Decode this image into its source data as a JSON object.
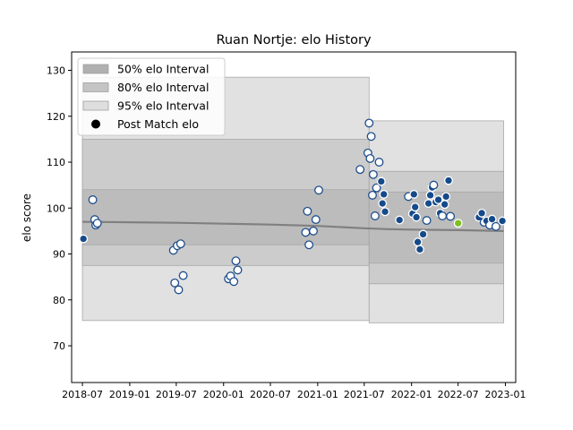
{
  "chart_data": {
    "type": "scatter",
    "title": "Ruan Nortje: elo History",
    "xlabel": "",
    "ylabel": "elo score",
    "xlim": [
      "2018-05-20",
      "2023-02-10"
    ],
    "ylim": [
      62,
      134
    ],
    "x_ticks": [
      "2018-07",
      "2019-01",
      "2019-07",
      "2020-01",
      "2020-07",
      "2021-01",
      "2021-07",
      "2022-01",
      "2022-07",
      "2023-01"
    ],
    "y_ticks": [
      70,
      80,
      90,
      100,
      110,
      120,
      130
    ],
    "grid": false,
    "legend": {
      "placement": "top-left",
      "entries": [
        {
          "label": "50% elo Interval",
          "kind": "patch",
          "color": "#b0b0b0"
        },
        {
          "label": "80% elo Interval",
          "kind": "patch",
          "color": "#c4c4c4"
        },
        {
          "label": "95% elo Interval",
          "kind": "patch",
          "color": "#dedede"
        },
        {
          "label": "Post Match elo",
          "kind": "marker",
          "color": "#000000"
        }
      ]
    },
    "colors": {
      "band_50": "#b8b8b8",
      "band_80": "#c8c8c8",
      "band_95": "#dcdcdc",
      "band_edge": "#a8a8a8",
      "mean_line": "#808080",
      "point_white_edge": "#1f4e8c",
      "point_filled": "#154a8a",
      "point_highlight": "#7fbf1f"
    },
    "intervals": {
      "segment_1": {
        "from": "2018-07-01",
        "to": "2021-07-20",
        "b95": [
          75.5,
          128.5
        ],
        "b80": [
          87.5,
          115
        ],
        "b50": [
          92,
          104
        ]
      },
      "segment_2": {
        "from": "2021-07-20",
        "to": "2022-12-25",
        "b95": [
          75,
          119
        ],
        "b80": [
          83.5,
          108
        ],
        "b50": [
          88,
          103.5
        ]
      }
    },
    "mean_series": {
      "x": [
        "2018-07-01",
        "2019-01-01",
        "2019-07-01",
        "2020-01-01",
        "2020-07-01",
        "2021-01-01",
        "2021-07-01",
        "2021-10-01",
        "2022-01-01",
        "2022-07-01",
        "2022-12-25"
      ],
      "y": [
        97.0,
        96.9,
        96.8,
        96.6,
        96.4,
        96.1,
        95.6,
        95.4,
        95.3,
        95.2,
        95.0
      ]
    },
    "series": [
      {
        "points": [
          {
            "x": "2018-07-05",
            "y": 93.3,
            "style": "filled"
          },
          {
            "x": "2018-08-10",
            "y": 101.8,
            "style": "open"
          },
          {
            "x": "2018-08-18",
            "y": 97.5,
            "style": "open"
          },
          {
            "x": "2018-08-22",
            "y": 96.3,
            "style": "open"
          },
          {
            "x": "2018-08-28",
            "y": 96.7,
            "style": "open"
          },
          {
            "x": "2019-06-20",
            "y": 90.8,
            "style": "open"
          },
          {
            "x": "2019-06-25",
            "y": 83.7,
            "style": "open"
          },
          {
            "x": "2019-07-05",
            "y": 91.8,
            "style": "open"
          },
          {
            "x": "2019-07-10",
            "y": 82.2,
            "style": "open"
          },
          {
            "x": "2019-07-18",
            "y": 92.2,
            "style": "open"
          },
          {
            "x": "2019-07-28",
            "y": 85.3,
            "style": "open"
          },
          {
            "x": "2020-01-20",
            "y": 84.6,
            "style": "open"
          },
          {
            "x": "2020-01-28",
            "y": 85.2,
            "style": "open"
          },
          {
            "x": "2020-02-10",
            "y": 84.0,
            "style": "open"
          },
          {
            "x": "2020-02-18",
            "y": 88.5,
            "style": "open"
          },
          {
            "x": "2020-02-25",
            "y": 86.5,
            "style": "open"
          },
          {
            "x": "2020-11-15",
            "y": 94.7,
            "style": "open"
          },
          {
            "x": "2020-11-22",
            "y": 99.3,
            "style": "open"
          },
          {
            "x": "2020-11-28",
            "y": 92.0,
            "style": "open"
          },
          {
            "x": "2020-12-15",
            "y": 95.0,
            "style": "open"
          },
          {
            "x": "2020-12-25",
            "y": 97.5,
            "style": "open"
          },
          {
            "x": "2021-01-05",
            "y": 103.9,
            "style": "open"
          },
          {
            "x": "2021-06-15",
            "y": 108.4,
            "style": "open"
          },
          {
            "x": "2021-07-15",
            "y": 112.0,
            "style": "open"
          },
          {
            "x": "2021-07-20",
            "y": 118.5,
            "style": "open"
          },
          {
            "x": "2021-07-24",
            "y": 110.8,
            "style": "open"
          },
          {
            "x": "2021-07-28",
            "y": 115.6,
            "style": "open"
          },
          {
            "x": "2021-08-02",
            "y": 102.8,
            "style": "open"
          },
          {
            "x": "2021-08-05",
            "y": 107.3,
            "style": "open"
          },
          {
            "x": "2021-08-12",
            "y": 98.3,
            "style": "open"
          },
          {
            "x": "2021-08-18",
            "y": 104.4,
            "style": "open"
          },
          {
            "x": "2021-08-28",
            "y": 110.0,
            "style": "open"
          },
          {
            "x": "2021-09-05",
            "y": 105.8,
            "style": "filled"
          },
          {
            "x": "2021-09-10",
            "y": 101.0,
            "style": "filled"
          },
          {
            "x": "2021-09-15",
            "y": 103.0,
            "style": "filled"
          },
          {
            "x": "2021-09-20",
            "y": 99.2,
            "style": "filled"
          },
          {
            "x": "2021-11-15",
            "y": 97.4,
            "style": "filled"
          },
          {
            "x": "2021-12-20",
            "y": 102.5,
            "style": "open"
          },
          {
            "x": "2022-01-05",
            "y": 98.8,
            "style": "filled"
          },
          {
            "x": "2022-01-10",
            "y": 103.0,
            "style": "filled"
          },
          {
            "x": "2022-01-15",
            "y": 100.2,
            "style": "filled"
          },
          {
            "x": "2022-01-20",
            "y": 98.0,
            "style": "filled"
          },
          {
            "x": "2022-01-25",
            "y": 92.6,
            "style": "filled"
          },
          {
            "x": "2022-02-02",
            "y": 91.0,
            "style": "filled"
          },
          {
            "x": "2022-02-15",
            "y": 94.3,
            "style": "filled"
          },
          {
            "x": "2022-03-01",
            "y": 97.3,
            "style": "open"
          },
          {
            "x": "2022-03-08",
            "y": 101.0,
            "style": "filled"
          },
          {
            "x": "2022-03-15",
            "y": 102.8,
            "style": "filled"
          },
          {
            "x": "2022-03-22",
            "y": 104.5,
            "style": "filled"
          },
          {
            "x": "2022-03-28",
            "y": 105.0,
            "style": "open"
          },
          {
            "x": "2022-04-05",
            "y": 101.3,
            "style": "filled"
          },
          {
            "x": "2022-04-15",
            "y": 101.8,
            "style": "filled"
          },
          {
            "x": "2022-04-22",
            "y": 98.9,
            "style": "filled"
          },
          {
            "x": "2022-05-01",
            "y": 98.3,
            "style": "open"
          },
          {
            "x": "2022-05-10",
            "y": 100.8,
            "style": "filled"
          },
          {
            "x": "2022-05-15",
            "y": 102.5,
            "style": "filled"
          },
          {
            "x": "2022-05-25",
            "y": 106.0,
            "style": "filled"
          },
          {
            "x": "2022-06-01",
            "y": 98.2,
            "style": "open"
          },
          {
            "x": "2022-07-01",
            "y": 96.7,
            "style": "highlight"
          },
          {
            "x": "2022-09-20",
            "y": 98.0,
            "style": "filled"
          },
          {
            "x": "2022-10-01",
            "y": 98.9,
            "style": "filled"
          },
          {
            "x": "2022-10-10",
            "y": 96.9,
            "style": "open"
          },
          {
            "x": "2022-10-20",
            "y": 97.2,
            "style": "filled"
          },
          {
            "x": "2022-11-01",
            "y": 96.3,
            "style": "open"
          },
          {
            "x": "2022-11-10",
            "y": 97.6,
            "style": "filled"
          },
          {
            "x": "2022-11-25",
            "y": 96.0,
            "style": "open"
          },
          {
            "x": "2022-12-20",
            "y": 97.2,
            "style": "filled"
          }
        ]
      }
    ]
  }
}
